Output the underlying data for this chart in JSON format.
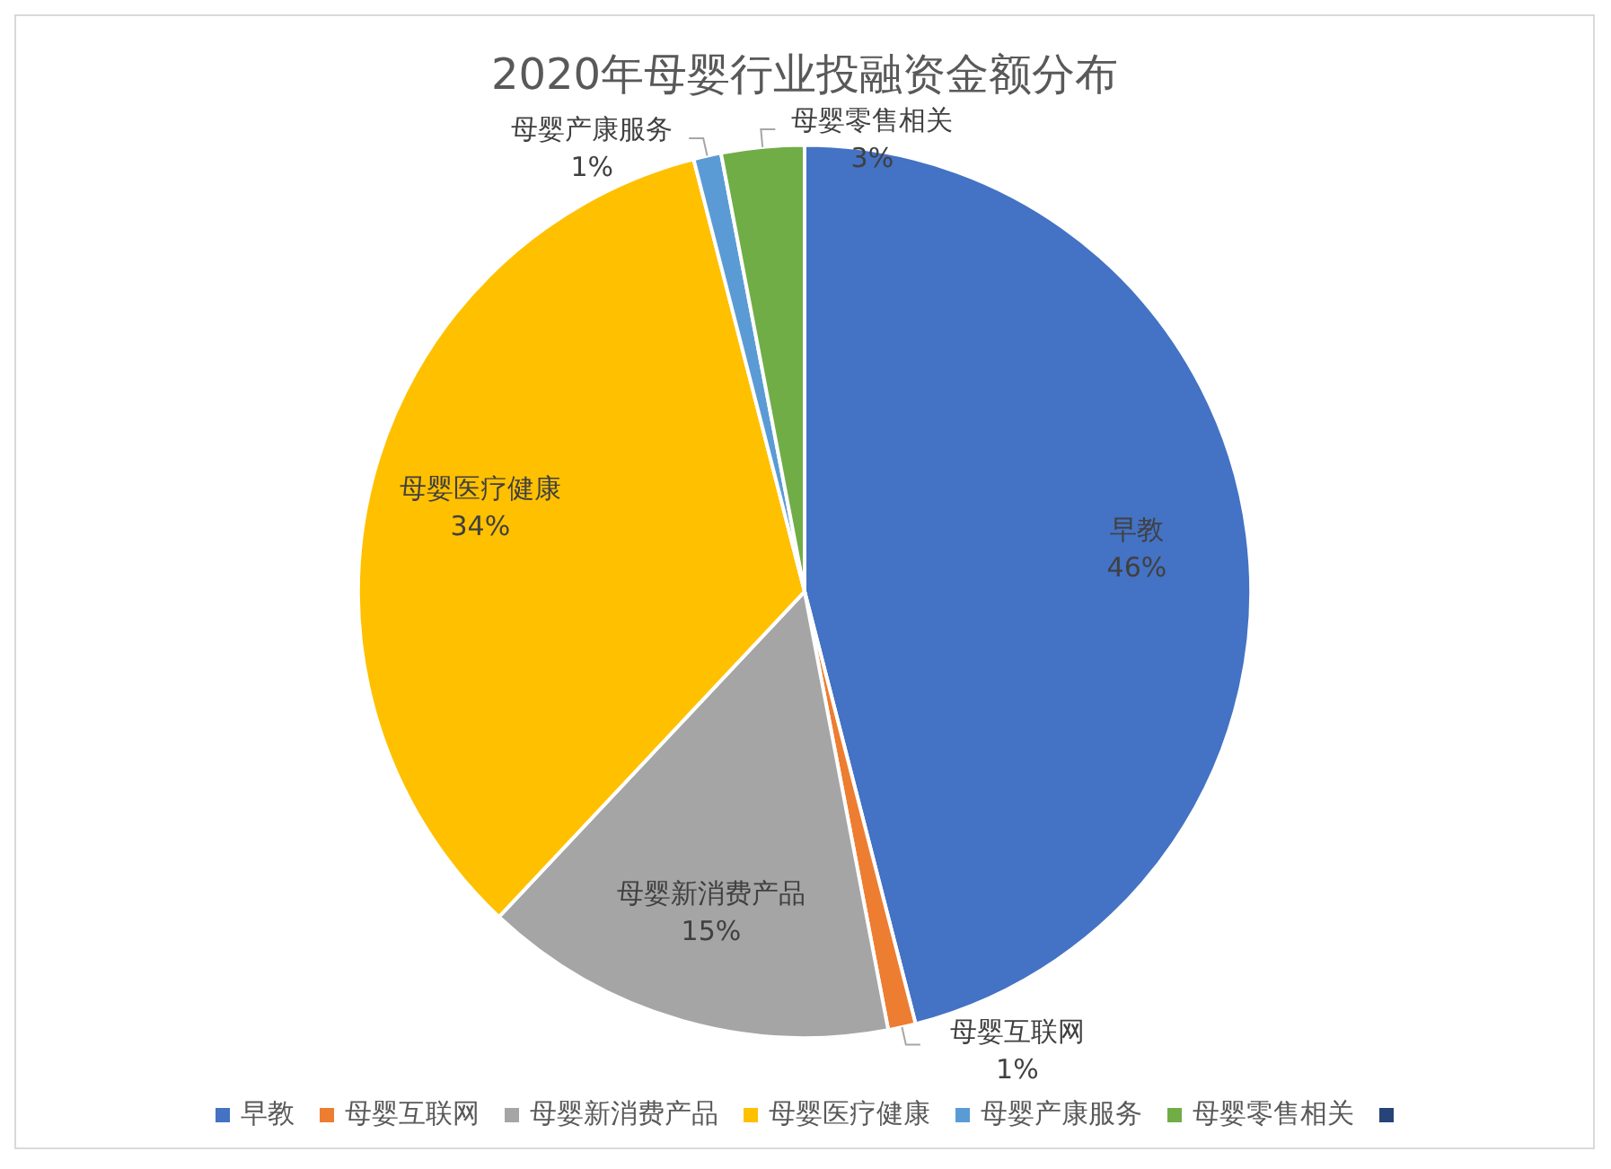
{
  "chart_data": {
    "type": "pie",
    "title": "2020年母婴行业投融资金额分布",
    "categories": [
      "早教",
      "母婴互联网",
      "母婴新消费产品",
      "母婴医疗健康",
      "母婴产康服务",
      "母婴零售相关",
      null
    ],
    "values": [
      46,
      1,
      15,
      34,
      1,
      3,
      0
    ],
    "value_labels": [
      "46%",
      "1%",
      "15%",
      "34%",
      "1%",
      "3%",
      null
    ],
    "colors": [
      "#4472c4",
      "#ed7d31",
      "#a5a5a5",
      "#ffc000",
      "#5b9bd5",
      "#70ad47",
      "#264478"
    ],
    "legend": "bottom"
  }
}
